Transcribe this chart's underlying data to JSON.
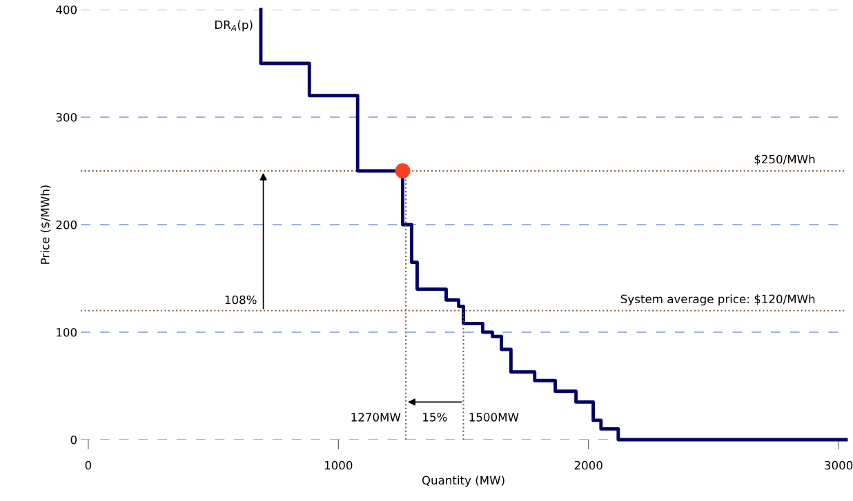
{
  "chart_data": {
    "type": "step",
    "xlabel": "Quantity (MW)",
    "ylabel": "Price ($/MWh)",
    "xlim": [
      -30,
      3030
    ],
    "xticks": [
      0,
      1000,
      2000,
      3000
    ],
    "ylim": [
      0,
      400
    ],
    "yticks": [
      0,
      100,
      200,
      300,
      400
    ],
    "grid": "y",
    "series": [
      {
        "color": "#000066",
        "x": [
          690,
          690,
          884,
          1077,
          1257,
          1293,
          1315,
          1431,
          1481,
          1500,
          1577,
          1616,
          1652,
          1690,
          1785,
          1867,
          1950,
          2019,
          2050,
          2119,
          3030
        ],
        "values": [
          400,
          350,
          320,
          250,
          200,
          165,
          140,
          130,
          124,
          108,
          100,
          96,
          84,
          63,
          55,
          45,
          35,
          18,
          10,
          0,
          0
        ]
      },
      {
        "type": "line",
        "color": "#7f5a3a",
        "line_style": "dotted",
        "x": [
          1270,
          1270
        ],
        "values": [
          0,
          250
        ]
      },
      {
        "type": "line",
        "color": "#7f5a3a",
        "line_style": "dotted",
        "x": [
          1500,
          1500
        ],
        "values": [
          0,
          120
        ]
      },
      {
        "type": "scatter",
        "color": "#ff4020",
        "x": [
          1257
        ],
        "values": [
          250
        ]
      }
    ],
    "ref_lines": [
      {
        "axis": "y",
        "value": 250,
        "label": "$250/MWh",
        "color": "#7f5a3a",
        "line_style": "dotted"
      },
      {
        "axis": "y",
        "value": 120,
        "label": "System average price: $120/MWh",
        "color": "#7f5a3a",
        "line_style": "dotted"
      }
    ],
    "annotations": [
      {
        "text": "DR$_{A}$(p)",
        "x": 690,
        "y": 385
      },
      {
        "text": "108%",
        "x": 700,
        "y": 120
      },
      {
        "text": "15%",
        "x": 1500,
        "y": 35
      },
      {
        "text": "1270MW",
        "x": 1270,
        "y": 20
      },
      {
        "text": "1500MW",
        "x": 1500,
        "y": 20
      }
    ]
  }
}
